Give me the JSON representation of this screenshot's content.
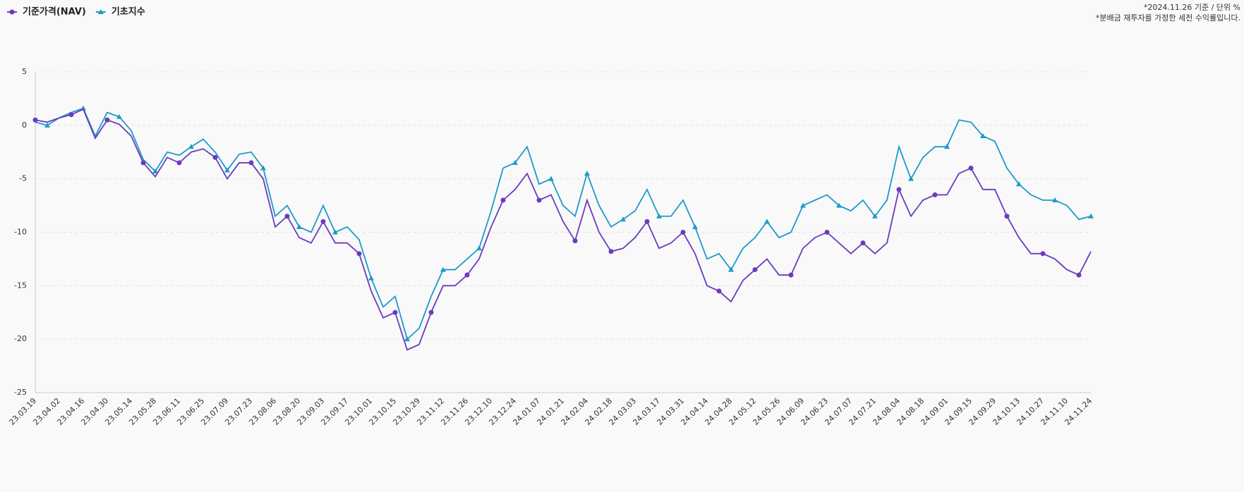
{
  "chart_data": {
    "type": "line",
    "notes": [
      "*2024.11.26 기준 / 단위 %",
      "*분배금 재투자를 가정한 세전 수익률입니다."
    ],
    "categories": [
      "23.03.19",
      null,
      "23.04.02",
      null,
      "23.04.16",
      null,
      "23.04.30",
      null,
      "23.05.14",
      null,
      "23.05.28",
      null,
      "23.06.11",
      null,
      "23.06.25",
      null,
      "23.07.09",
      null,
      "23.07.23",
      null,
      "23.08.06",
      null,
      "23.08.20",
      null,
      "23.09.03",
      null,
      "23.09.17",
      null,
      "23.10.01",
      null,
      "23.10.15",
      null,
      "23.10.29",
      null,
      "23.11.12",
      null,
      "23.11.26",
      null,
      "23.12.10",
      null,
      "23.12.24",
      null,
      "24.01.07",
      null,
      "24.01.21",
      null,
      "24.02.04",
      null,
      "24.02.18",
      null,
      "24.03.03",
      null,
      "24.03.17",
      null,
      "24.03.31",
      null,
      "24.04.14",
      null,
      "24.04.28",
      null,
      "24.05.12",
      null,
      "24.05.26",
      null,
      "24.06.09",
      null,
      "24.06.23",
      null,
      "24.07.07",
      null,
      "24.07.21",
      null,
      "24.08.04",
      null,
      "24.08.18",
      null,
      "24.09.01",
      null,
      "24.09.15",
      null,
      "24.09.29",
      null,
      "24.10.13",
      null,
      "24.10.27",
      null,
      "24.11.10",
      null,
      "24.11.24"
    ],
    "series": [
      {
        "name": "기준가격(NAV)",
        "color": "#6a3bbf",
        "marker": "circle",
        "values": [
          0.5,
          0.3,
          0.7,
          1.0,
          1.5,
          -1.2,
          0.5,
          0.1,
          -1.0,
          -3.5,
          -4.8,
          -3.0,
          -3.5,
          -2.5,
          -2.2,
          -3.0,
          -5.0,
          -3.5,
          -3.5,
          -5.0,
          -9.5,
          -8.5,
          -10.5,
          -11.0,
          -9.0,
          -11.0,
          -11.0,
          -12.0,
          -15.5,
          -18.0,
          -17.5,
          -21.0,
          -20.5,
          -17.5,
          -15.0,
          -15.0,
          -14.0,
          -12.5,
          -9.5,
          -7.0,
          -6.0,
          -4.5,
          -7.0,
          -6.5,
          -9.0,
          -10.8,
          -7.0,
          -10.0,
          -11.8,
          -11.5,
          -10.5,
          -9.0,
          -11.5,
          -11.0,
          -10.0,
          -12.0,
          -15.0,
          -15.5,
          -16.5,
          -14.5,
          -13.5,
          -12.5,
          -14.0,
          -14.0,
          -11.5,
          -10.5,
          -10.0,
          -11.0,
          -12.0,
          -11.0,
          -12.0,
          -11.0,
          -6.0,
          -8.5,
          -7.0,
          -6.5,
          -6.5,
          -4.5,
          -4.0,
          -6.0,
          -6.0,
          -8.5,
          -10.5,
          -12.0,
          -12.0,
          -12.5,
          -13.5,
          -14.0,
          -11.8
        ]
      },
      {
        "name": "기초지수",
        "color": "#1a9bc9",
        "marker": "triangle",
        "values": [
          0.3,
          0.0,
          0.7,
          1.2,
          1.6,
          -1.0,
          1.2,
          0.8,
          -0.5,
          -3.2,
          -4.3,
          -2.5,
          -2.8,
          -2.0,
          -1.3,
          -2.5,
          -4.2,
          -2.7,
          -2.5,
          -4.0,
          -8.5,
          -7.5,
          -9.5,
          -10.0,
          -7.5,
          -10.0,
          -9.5,
          -10.7,
          -14.3,
          -17.0,
          -16.0,
          -20.0,
          -19.0,
          -16.0,
          -13.5,
          -13.5,
          -12.5,
          -11.5,
          -8.0,
          -4.0,
          -3.5,
          -2.0,
          -5.5,
          -5.0,
          -7.5,
          -8.5,
          -4.5,
          -7.5,
          -9.5,
          -8.8,
          -8.0,
          -6.0,
          -8.5,
          -8.5,
          -7.0,
          -9.5,
          -12.5,
          -12.0,
          -13.5,
          -11.5,
          -10.5,
          -9.0,
          -10.5,
          -10.0,
          -7.5,
          -7.0,
          -6.5,
          -7.5,
          -8.0,
          -7.0,
          -8.5,
          -7.0,
          -2.0,
          -5.0,
          -3.0,
          -2.0,
          -2.0,
          0.5,
          0.3,
          -1.0,
          -1.5,
          -4.0,
          -5.5,
          -6.5,
          -7.0,
          -7.0,
          -7.5,
          -8.8,
          -8.5
        ]
      }
    ],
    "ylim": [
      -25,
      5
    ],
    "yticks": [
      5,
      0,
      -5,
      -10,
      -15,
      -20,
      -25
    ],
    "grid": true
  }
}
